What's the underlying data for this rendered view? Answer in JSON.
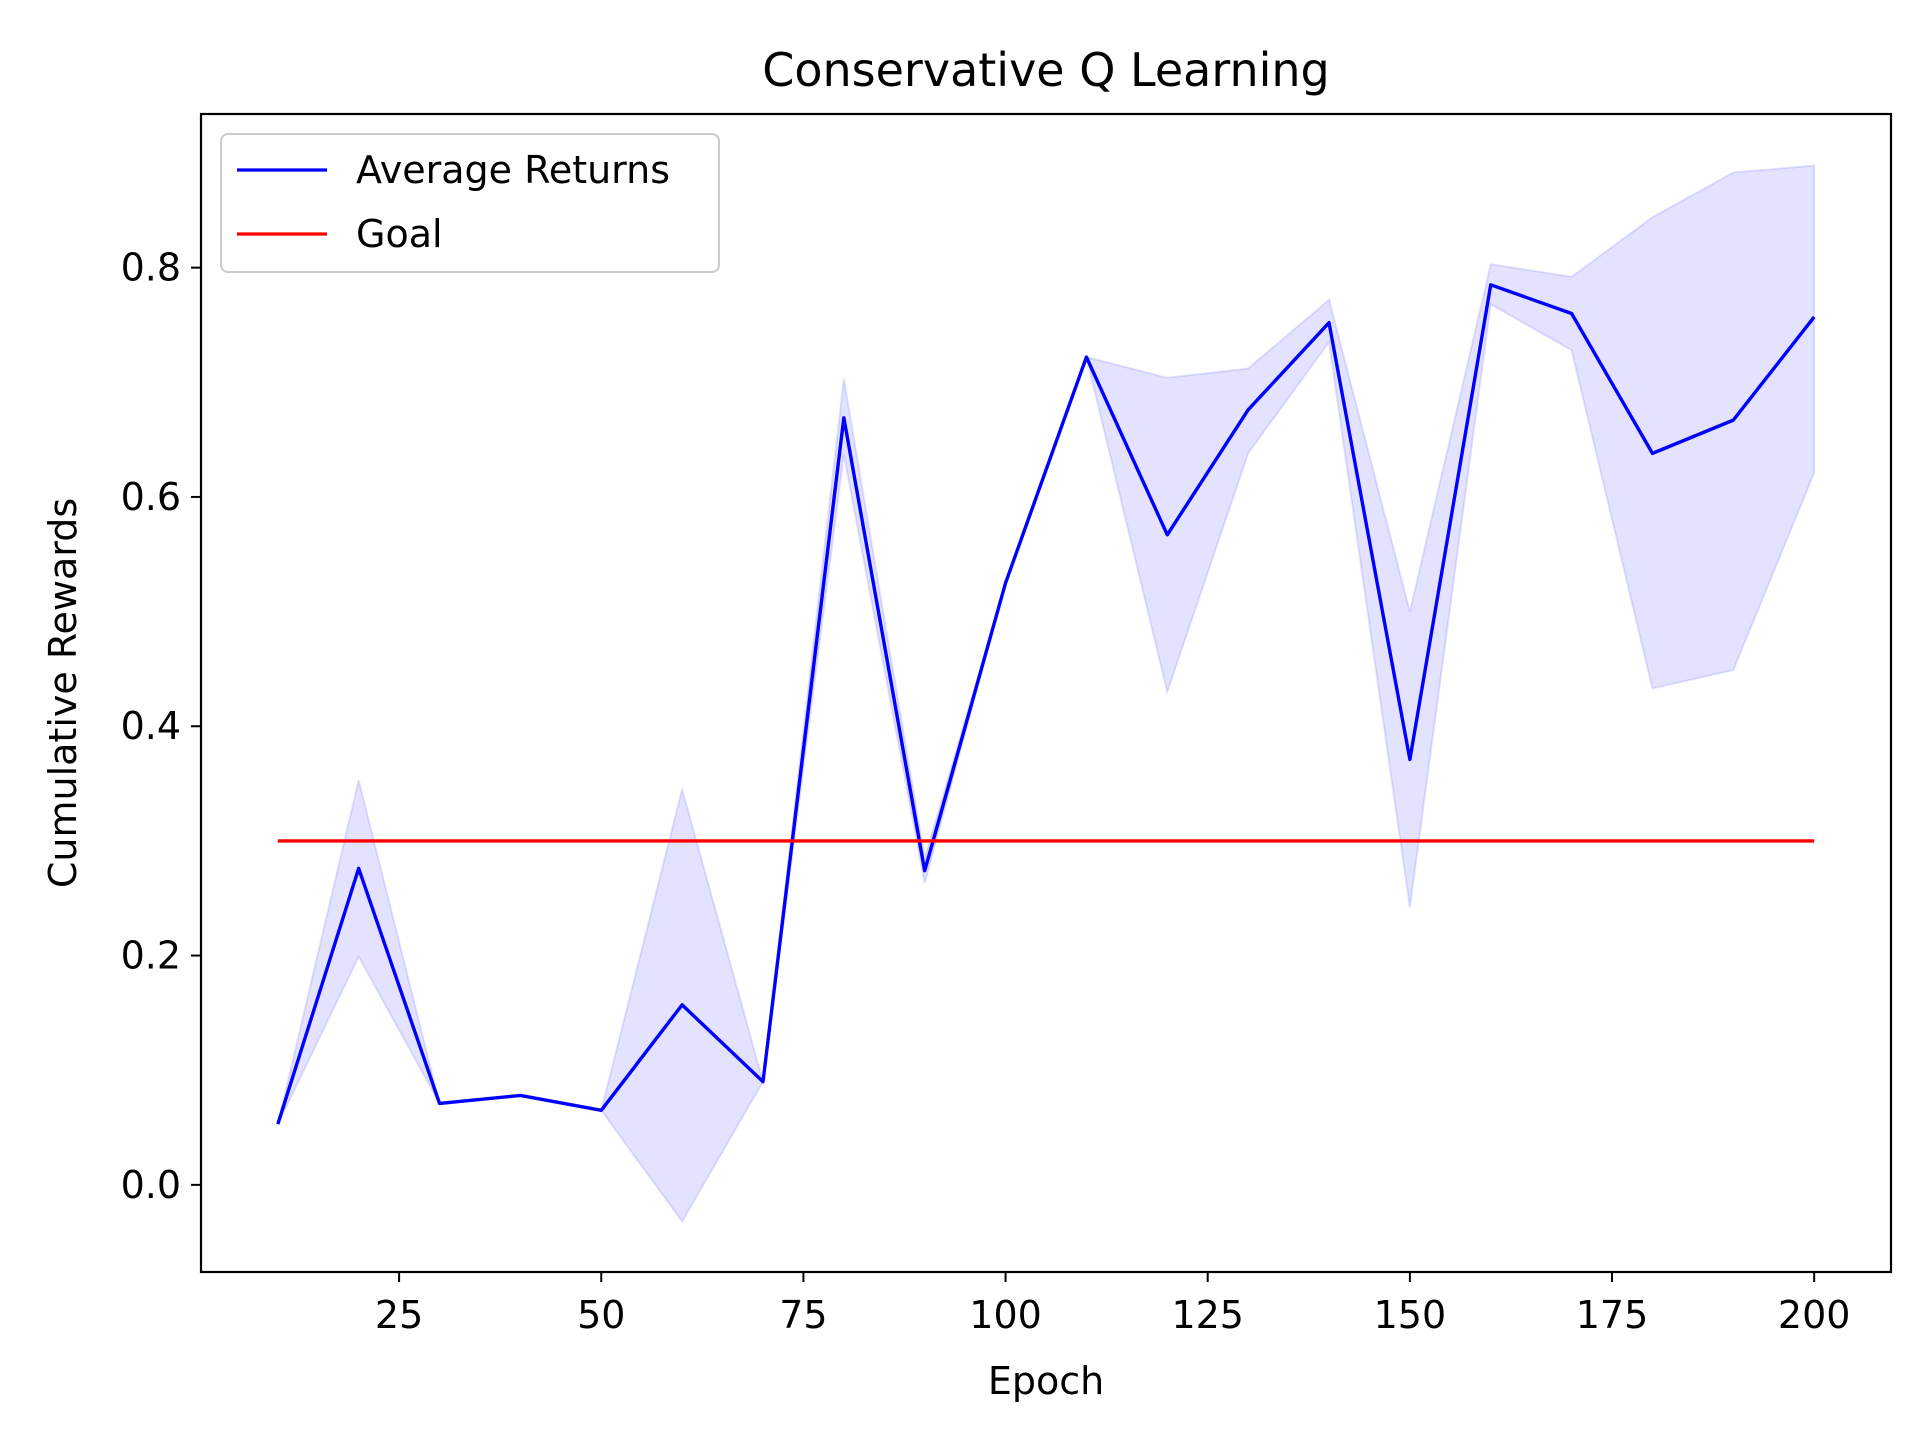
{
  "chart_data": {
    "type": "line",
    "title": "Conservative Q Learning",
    "xlabel": "Epoch",
    "ylabel": "Cumulative Rewards",
    "xlim": [
      0.5,
      209.5
    ],
    "ylim": [
      -0.076,
      0.934
    ],
    "xticks": [
      25,
      50,
      75,
      100,
      125,
      150,
      175,
      200
    ],
    "yticks": [
      0.0,
      0.2,
      0.4,
      0.6,
      0.8
    ],
    "ytick_labels": [
      "0.0",
      "0.2",
      "0.4",
      "0.6",
      "0.8"
    ],
    "x": [
      10,
      20,
      30,
      40,
      50,
      60,
      70,
      80,
      90,
      100,
      110,
      120,
      130,
      140,
      150,
      160,
      170,
      180,
      190,
      200
    ],
    "series": [
      {
        "name": "Average Returns",
        "color": "#0000ff",
        "values": [
          0.053,
          0.276,
          0.071,
          0.078,
          0.065,
          0.157,
          0.09,
          0.669,
          0.274,
          0.525,
          0.722,
          0.567,
          0.676,
          0.752,
          0.371,
          0.785,
          0.76,
          0.638,
          0.667,
          0.757
        ],
        "band_lower": [
          0.053,
          0.199,
          0.071,
          0.078,
          0.065,
          -0.032,
          0.09,
          0.637,
          0.263,
          0.525,
          0.722,
          0.43,
          0.638,
          0.735,
          0.242,
          0.768,
          0.728,
          0.433,
          0.449,
          0.621
        ],
        "band_upper": [
          0.053,
          0.353,
          0.071,
          0.078,
          0.065,
          0.345,
          0.09,
          0.703,
          0.285,
          0.525,
          0.722,
          0.704,
          0.712,
          0.772,
          0.5,
          0.803,
          0.792,
          0.844,
          0.883,
          0.889
        ],
        "band_color": "#0000ff",
        "band_opacity": 0.11
      },
      {
        "name": "Goal",
        "color": "#ff0000",
        "constant": 0.3,
        "x_range": [
          10,
          200
        ]
      }
    ],
    "legend_position": "top-left",
    "grid": false
  }
}
